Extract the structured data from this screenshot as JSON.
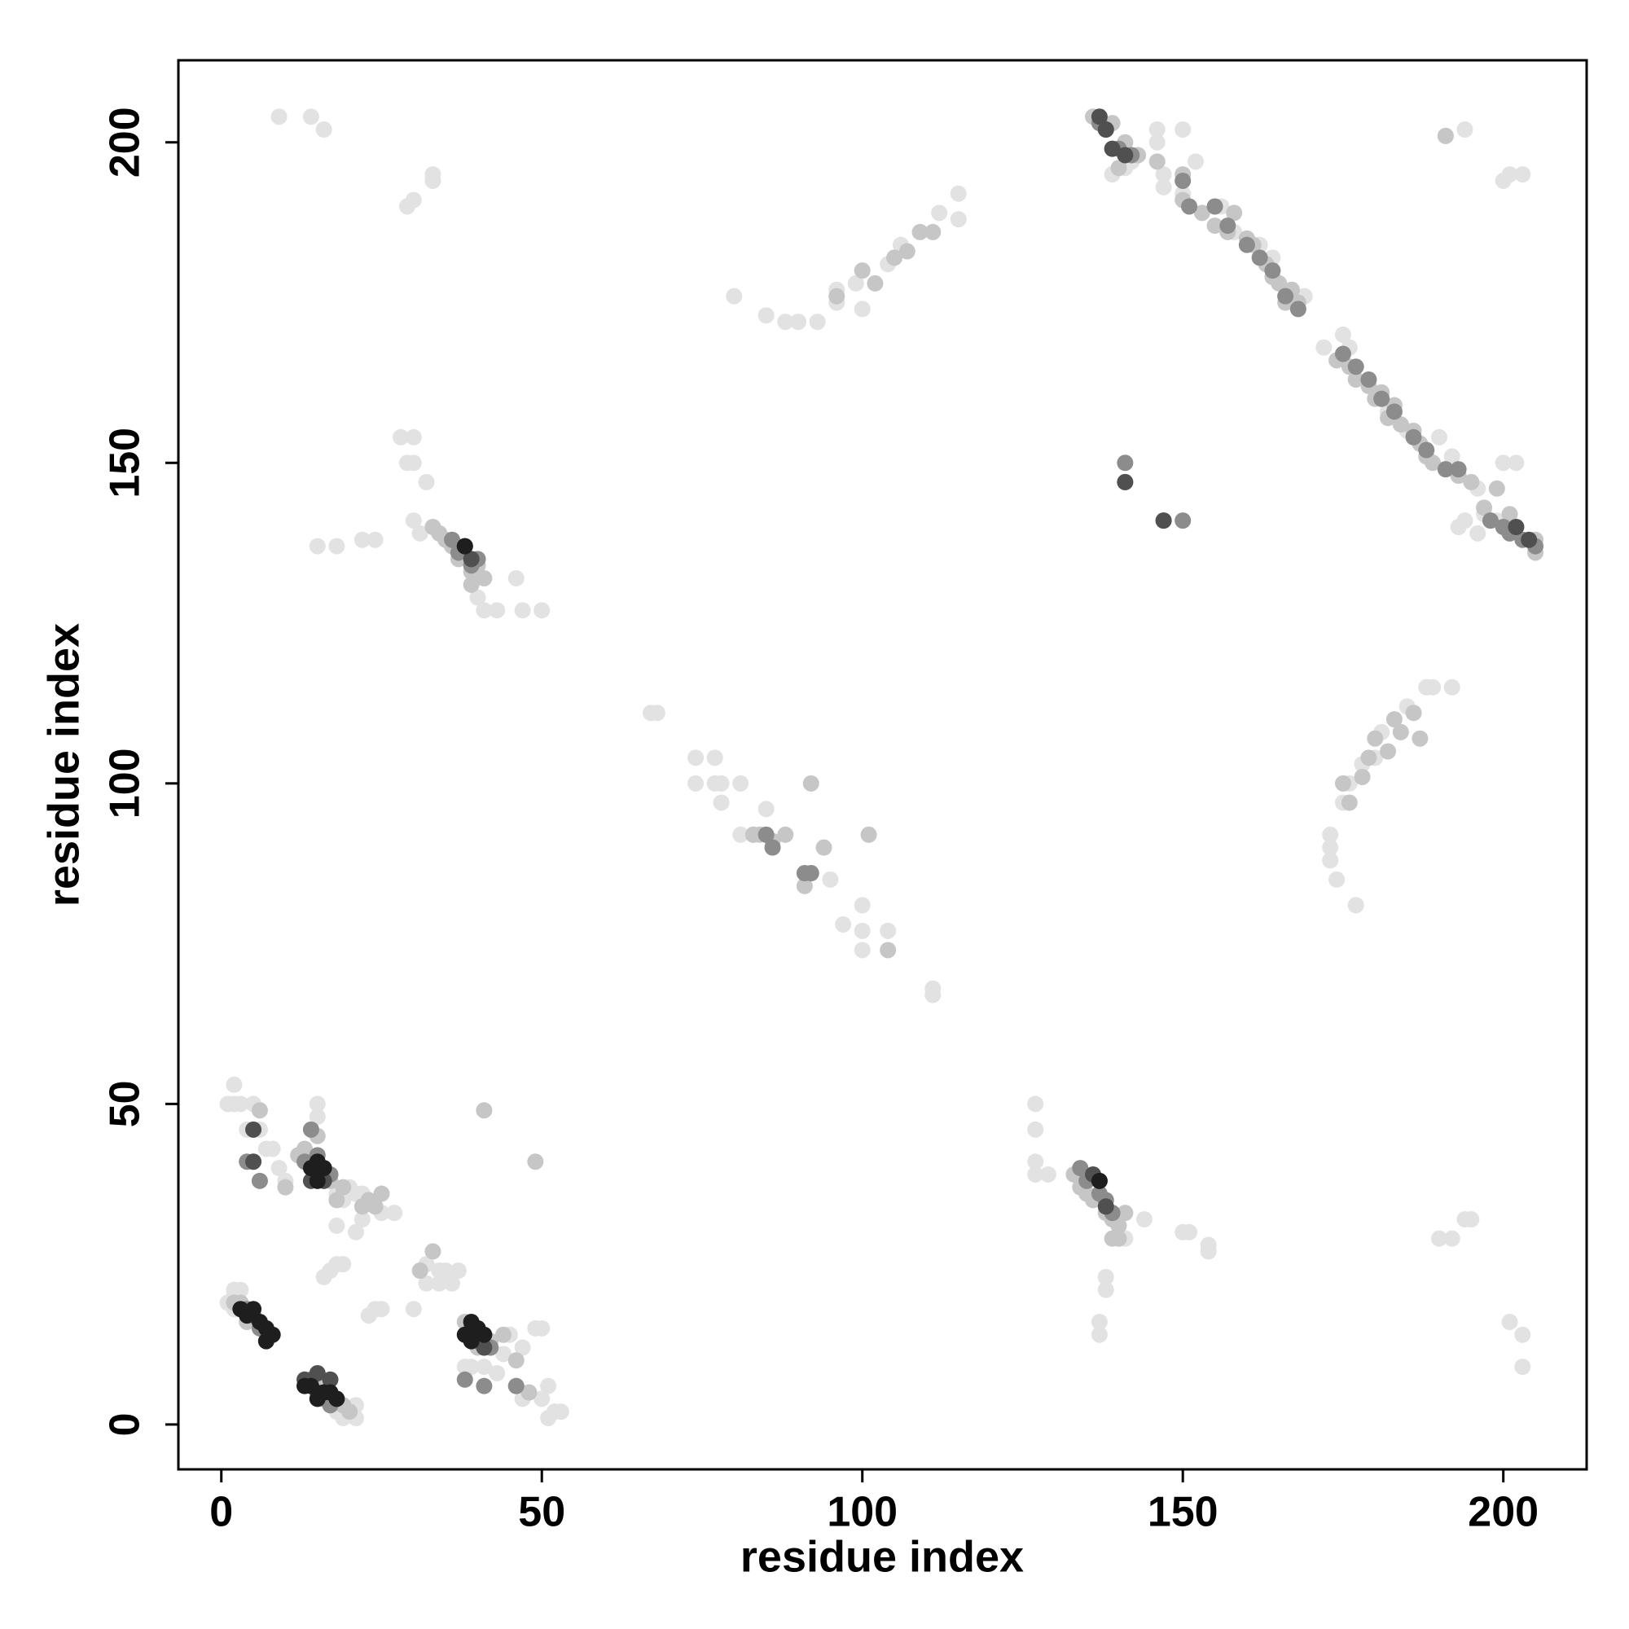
{
  "chart_data": {
    "type": "scatter",
    "x_label": "residue index",
    "y_label": "residue index",
    "xlim": [
      -6.7,
      213
    ],
    "ylim": [
      -7,
      212.8
    ],
    "xticks": [
      0,
      50,
      100,
      150,
      200
    ],
    "yticks": [
      0,
      50,
      100,
      150,
      200
    ],
    "series": [
      {
        "color": "#e2e2e2",
        "x": [
          9,
          14,
          16,
          29,
          30,
          33,
          33,
          28,
          30,
          29,
          30,
          32,
          15,
          18,
          22,
          24,
          30,
          31,
          40,
          41,
          43,
          46,
          47,
          50,
          67,
          68,
          74,
          77,
          74,
          77,
          78,
          81,
          78,
          81,
          83,
          85,
          95,
          97,
          100,
          100,
          100,
          104,
          111,
          111,
          80,
          85,
          88,
          90,
          93,
          96,
          96,
          100,
          99,
          115,
          115,
          112,
          104,
          106,
          146,
          150,
          146,
          141,
          142,
          139,
          147,
          173,
          173,
          173,
          174,
          175,
          176,
          177,
          178,
          180,
          185,
          188,
          189,
          192,
          181,
          191,
          194,
          201,
          203,
          200,
          192,
          194,
          195,
          190,
          201,
          203,
          203,
          144,
          150,
          151,
          154,
          154,
          127,
          127,
          127,
          127,
          129,
          138,
          138,
          137,
          137,
          141,
          2,
          2,
          1,
          3,
          4,
          5,
          6,
          8,
          9,
          10,
          7,
          2,
          2,
          1,
          2,
          3,
          15,
          15,
          18,
          19,
          20,
          21,
          22,
          18,
          21,
          22,
          24,
          25,
          23,
          25,
          27,
          17,
          18,
          19,
          16,
          30,
          32,
          34,
          35,
          36,
          37,
          38,
          39,
          41,
          43,
          45,
          47,
          49,
          50,
          51,
          50,
          51,
          52,
          53,
          47,
          18,
          19,
          20,
          21,
          21,
          34,
          42,
          44,
          32,
          152,
          150,
          147,
          156,
          158,
          162,
          164,
          169,
          172,
          175,
          176,
          182,
          185,
          190,
          192,
          196,
          197,
          199,
          200,
          202,
          193,
          194,
          196
        ],
        "y": [
          204,
          204,
          202,
          190,
          191,
          194,
          195,
          154,
          154,
          150,
          150,
          147,
          137,
          137,
          138,
          138,
          141,
          139,
          129,
          127,
          127,
          132,
          127,
          127,
          111,
          111,
          104,
          104,
          100,
          100,
          100,
          100,
          97,
          92,
          92,
          96,
          85,
          78,
          81,
          77,
          74,
          77,
          68,
          67,
          176,
          173,
          172,
          172,
          172,
          177,
          175,
          174,
          178,
          188,
          192,
          189,
          181,
          184,
          202,
          202,
          200,
          196,
          197,
          195,
          195,
          92,
          90,
          88,
          85,
          97,
          100,
          81,
          103,
          104,
          112,
          115,
          115,
          115,
          108,
          201,
          202,
          195,
          195,
          194,
          29,
          32,
          32,
          29,
          16,
          14,
          9,
          32,
          30,
          30,
          27,
          28,
          50,
          46,
          41,
          39,
          39,
          21,
          23,
          16,
          14,
          29,
          53,
          50,
          50,
          50,
          46,
          50,
          46,
          43,
          40,
          38,
          43,
          18,
          20,
          19,
          21,
          21,
          50,
          48,
          36,
          35,
          37,
          36,
          36,
          31,
          30,
          32,
          18,
          18,
          17,
          33,
          33,
          24,
          25,
          25,
          23,
          18,
          25,
          24,
          24,
          22,
          24,
          9,
          9,
          9,
          8,
          14,
          12,
          15,
          15,
          6,
          4,
          1,
          2,
          2,
          4,
          2,
          1,
          2,
          1,
          3,
          22,
          12,
          11,
          22,
          197,
          192,
          193,
          190,
          186,
          184,
          182,
          176,
          168,
          170,
          168,
          158,
          155,
          154,
          151,
          146,
          142,
          141,
          150,
          150,
          140,
          141,
          139
        ]
      },
      {
        "color": "#c6c6c6",
        "x": [
          136,
          139,
          141,
          143,
          140,
          146,
          150,
          150,
          153,
          155,
          157,
          158,
          160,
          161,
          163,
          164,
          165,
          166,
          167,
          168,
          174,
          176,
          177,
          179,
          180,
          181,
          182,
          183,
          184,
          186,
          187,
          188,
          189,
          191,
          193,
          195,
          197,
          199,
          201,
          202,
          205,
          205,
          191,
          109,
          107,
          105,
          102,
          100,
          111,
          96,
          175,
          176,
          178,
          180,
          182,
          183,
          186,
          187,
          184,
          179,
          35,
          33,
          34,
          36,
          37,
          39,
          40,
          41,
          39,
          133,
          134,
          135,
          136,
          138,
          139,
          140,
          141,
          139,
          140,
          92,
          91,
          86,
          84,
          88,
          83,
          92,
          94,
          101,
          104,
          15,
          13,
          17,
          19,
          23,
          24,
          25,
          22,
          12,
          10,
          18,
          6,
          31,
          33,
          38,
          40,
          42,
          44,
          46,
          46,
          48,
          49,
          41,
          16,
          17,
          18,
          19,
          20,
          3,
          4,
          2
        ],
        "y": [
          204,
          203,
          200,
          198,
          196,
          197,
          195,
          191,
          189,
          187,
          186,
          189,
          185,
          184,
          181,
          179,
          178,
          175,
          177,
          175,
          166,
          165,
          163,
          162,
          160,
          161,
          157,
          159,
          156,
          155,
          153,
          151,
          150,
          149,
          148,
          147,
          143,
          146,
          142,
          140,
          136,
          138,
          201,
          186,
          183,
          182,
          178,
          180,
          186,
          176,
          100,
          97,
          101,
          107,
          105,
          110,
          111,
          107,
          108,
          104,
          138,
          140,
          139,
          137,
          135,
          133,
          134,
          132,
          131,
          39,
          37,
          36,
          35,
          33,
          32,
          31,
          33,
          29,
          29,
          86,
          84,
          91,
          92,
          92,
          92,
          100,
          90,
          92,
          74,
          45,
          43,
          38,
          37,
          35,
          34,
          36,
          34,
          42,
          37,
          35,
          49,
          24,
          27,
          16,
          12,
          13,
          14,
          10,
          6,
          5,
          41,
          49,
          6,
          5,
          4,
          3,
          2,
          19,
          16,
          19
        ]
      },
      {
        "color": "#8c8c8c",
        "x": [
          137,
          138,
          140,
          142,
          150,
          151,
          155,
          157,
          160,
          162,
          164,
          166,
          168,
          175,
          177,
          179,
          181,
          183,
          186,
          188,
          191,
          193,
          198,
          200,
          201,
          203,
          205,
          141,
          141,
          147,
          150,
          36,
          37,
          39,
          40,
          137,
          138,
          139,
          134,
          135,
          91,
          92,
          85,
          86,
          15,
          16,
          17,
          13,
          14,
          6,
          4,
          39,
          40,
          42,
          41,
          38,
          46,
          5,
          6,
          4,
          14,
          15,
          16,
          17
        ],
        "y": [
          203,
          202,
          199,
          198,
          194,
          190,
          190,
          187,
          184,
          182,
          180,
          176,
          174,
          167,
          165,
          163,
          160,
          158,
          154,
          152,
          149,
          149,
          141,
          140,
          139,
          138,
          137,
          150,
          147,
          141,
          141,
          138,
          136,
          134,
          135,
          36,
          35,
          33,
          40,
          38,
          86,
          86,
          92,
          90,
          42,
          40,
          39,
          41,
          46,
          38,
          41,
          15,
          13,
          12,
          6,
          7,
          6,
          17,
          15,
          18,
          7,
          5,
          4,
          3
        ]
      },
      {
        "color": "#505050",
        "x": [
          138,
          137,
          141,
          202,
          204,
          139,
          38,
          39,
          137,
          136,
          138,
          141,
          147,
          5,
          5,
          15,
          16,
          14,
          40,
          39,
          41,
          15,
          17,
          13
        ],
        "y": [
          202,
          204,
          198,
          140,
          138,
          199,
          137,
          135,
          38,
          39,
          34,
          147,
          141,
          46,
          41,
          40,
          38,
          38,
          15,
          14,
          12,
          8,
          7,
          7
        ]
      },
      {
        "color": "#1e1e1e",
        "x": [
          38,
          137,
          5,
          6,
          7,
          7,
          8,
          4,
          3,
          13,
          14,
          15,
          16,
          17,
          18,
          15,
          16,
          14,
          15,
          38,
          39,
          40,
          41,
          39
        ],
        "y": [
          137,
          38,
          18,
          16,
          15,
          13,
          14,
          17,
          18,
          6,
          6,
          4,
          5,
          5,
          4,
          41,
          40,
          40,
          38,
          14,
          13,
          15,
          14,
          16
        ]
      }
    ]
  }
}
